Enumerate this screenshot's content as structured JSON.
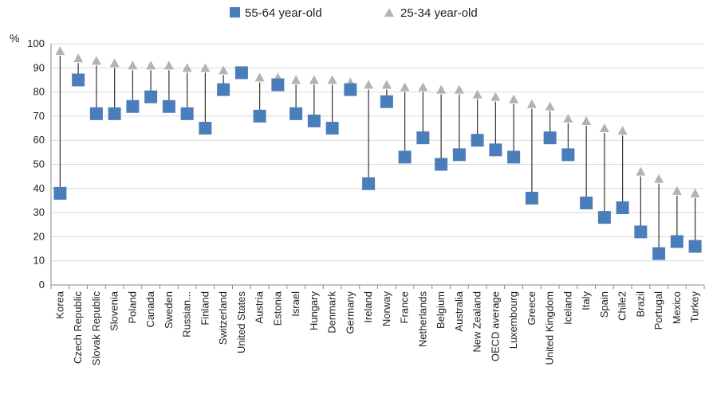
{
  "chart_data": {
    "type": "scatter",
    "ylabel": "%",
    "ylim": [
      0,
      100
    ],
    "yticks": [
      0,
      10,
      20,
      30,
      40,
      50,
      60,
      70,
      80,
      90,
      100
    ],
    "grid": true,
    "legend_position": "top",
    "categories": [
      "Korea",
      "Czech Republic",
      "Slovak Republic",
      "Slovenia",
      "Poland",
      "Canada",
      "Sweden",
      "Russian...",
      "Finland",
      "Switzerland",
      "United States",
      "Austria",
      "Estonia",
      "Israel",
      "Hungary",
      "Denmark",
      "Germany",
      "Ireland",
      "Norway",
      "France",
      "Netherlands",
      "Belgium",
      "Australia",
      "New Zealand",
      "OECD average",
      "Luxembourg",
      "Greece",
      "United Kingdom",
      "Iceland",
      "Italy",
      "Spain",
      "Chile2",
      "Brazil",
      "Portugal",
      "Mexico",
      "Turkey"
    ],
    "series": [
      {
        "name": "55-64 year-old",
        "marker": "square",
        "color": "#4a7ebb",
        "values": [
          38,
          85,
          71,
          71,
          74,
          78,
          74,
          71,
          65,
          81,
          88,
          70,
          83,
          71,
          68,
          65,
          81,
          42,
          76,
          53,
          61,
          50,
          54,
          60,
          56,
          53,
          36,
          61,
          54,
          34,
          28,
          32,
          22,
          13,
          18,
          16
        ]
      },
      {
        "name": "25-34 year-old",
        "marker": "triangle",
        "color": "#b3b3b3",
        "values": [
          97,
          94,
          93,
          92,
          91,
          91,
          91,
          90,
          90,
          89,
          88,
          86,
          86,
          85,
          85,
          85,
          84,
          83,
          83,
          82,
          82,
          81,
          81,
          79,
          78,
          77,
          75,
          74,
          69,
          68,
          65,
          64,
          47,
          44,
          39,
          38
        ]
      }
    ]
  }
}
